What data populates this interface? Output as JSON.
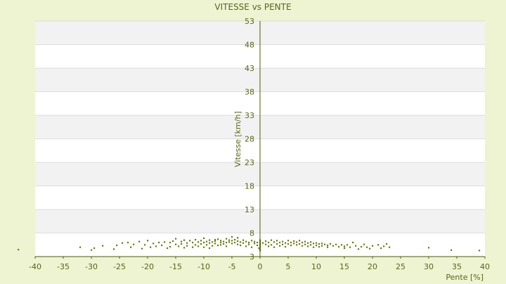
{
  "chart_data": {
    "type": "scatter",
    "title": "VITESSE vs PENTE",
    "xlabel": "Pente [%]",
    "ylabel": "Vitesse [km/h]",
    "xlim": [
      -40,
      40
    ],
    "ylim": [
      3,
      53
    ],
    "x_ticks": [
      -40,
      -35,
      -30,
      -25,
      -20,
      -15,
      -10,
      -5,
      0,
      5,
      10,
      15,
      20,
      25,
      30,
      35,
      40
    ],
    "y_ticks": [
      3,
      8,
      13,
      18,
      23,
      28,
      33,
      38,
      43,
      48,
      53
    ],
    "grid": "horizontal alternating bands",
    "legend": "none",
    "colors": {
      "point": "#6b7a12",
      "axis": "#4f5b0b",
      "text": "#5a6614",
      "band": "#f2f2f2",
      "plot_bg": "#ffffff",
      "page_bg": "#eef3d2"
    },
    "series": [
      {
        "values": [
          [
            -43,
            4.5
          ],
          [
            -32,
            5.0
          ],
          [
            -30,
            4.4
          ],
          [
            -29.5,
            4.8
          ],
          [
            -28,
            5.3
          ],
          [
            -26,
            4.6
          ],
          [
            -25.5,
            5.4
          ],
          [
            -24.5,
            5.9
          ],
          [
            -23.5,
            6.0
          ],
          [
            -23,
            5.0
          ],
          [
            -22.5,
            5.6
          ],
          [
            -21.5,
            6.2
          ],
          [
            -21,
            4.7
          ],
          [
            -20.5,
            5.5
          ],
          [
            -20,
            6.4
          ],
          [
            -19.5,
            5.0
          ],
          [
            -19,
            5.8
          ],
          [
            -18.5,
            5.2
          ],
          [
            -18,
            6.0
          ],
          [
            -17.5,
            5.4
          ],
          [
            -17,
            6.1
          ],
          [
            -16.5,
            4.8
          ],
          [
            -16,
            6.0
          ],
          [
            -16,
            5.1
          ],
          [
            -15.5,
            6.3
          ],
          [
            -15,
            5.6
          ],
          [
            -15,
            6.8
          ],
          [
            -14.5,
            5.2
          ],
          [
            -14,
            6.2
          ],
          [
            -14,
            5.7
          ],
          [
            -13.5,
            4.9
          ],
          [
            -13.5,
            6.5
          ],
          [
            -13,
            5.9
          ],
          [
            -13,
            5.3
          ],
          [
            -12.5,
            6.4
          ],
          [
            -12,
            5.0
          ],
          [
            -12,
            6.0
          ],
          [
            -11.5,
            5.5
          ],
          [
            -11.5,
            6.6
          ],
          [
            -11,
            6.1
          ],
          [
            -11,
            5.2
          ],
          [
            -10.5,
            6.4
          ],
          [
            -10.5,
            5.7
          ],
          [
            -10,
            6.0
          ],
          [
            -10,
            6.9
          ],
          [
            -10,
            5.0
          ],
          [
            -9.5,
            6.2
          ],
          [
            -9.5,
            5.5
          ],
          [
            -9,
            6.5
          ],
          [
            -9,
            5.9
          ],
          [
            -9,
            4.8
          ],
          [
            -8.5,
            6.1
          ],
          [
            -8.5,
            5.3
          ],
          [
            -8,
            6.6
          ],
          [
            -8,
            5.8
          ],
          [
            -8,
            6.3
          ],
          [
            -7.5,
            5.4
          ],
          [
            -7.5,
            6.7
          ],
          [
            -7,
            6.0
          ],
          [
            -7,
            5.5
          ],
          [
            -7,
            6.4
          ],
          [
            -6.5,
            6.2
          ],
          [
            -6.5,
            5.7
          ],
          [
            -6,
            6.8
          ],
          [
            -6,
            6.0
          ],
          [
            -6,
            5.2
          ],
          [
            -5.5,
            6.5
          ],
          [
            -5.5,
            6.1
          ],
          [
            -5,
            7.2
          ],
          [
            -5,
            5.8
          ],
          [
            -5,
            6.4
          ],
          [
            -4.5,
            6.0
          ],
          [
            -4.5,
            6.6
          ],
          [
            -4,
            5.6
          ],
          [
            -4,
            6.3
          ],
          [
            -4,
            7.0
          ],
          [
            -3.5,
            6.1
          ],
          [
            -3.5,
            5.4
          ],
          [
            -3,
            6.5
          ],
          [
            -3,
            5.9
          ],
          [
            -2.5,
            6.2
          ],
          [
            -2.5,
            5.2
          ],
          [
            -2,
            6.0
          ],
          [
            -2,
            5.6
          ],
          [
            -1.5,
            6.4
          ],
          [
            -1.5,
            5.0
          ],
          [
            -1,
            5.8
          ],
          [
            -1,
            6.2
          ],
          [
            -0.5,
            5.4
          ],
          [
            -0.5,
            6.0
          ],
          [
            -0.2,
            4.8
          ],
          [
            0,
            4.3
          ],
          [
            0,
            4.6
          ],
          [
            0,
            5.0
          ],
          [
            0,
            5.3
          ],
          [
            0,
            5.6
          ],
          [
            0,
            5.9
          ],
          [
            0,
            6.2
          ],
          [
            0,
            6.5
          ],
          [
            0.5,
            5.9
          ],
          [
            1,
            5.6
          ],
          [
            1,
            6.3
          ],
          [
            1.5,
            5.2
          ],
          [
            1.5,
            6.0
          ],
          [
            2,
            6.5
          ],
          [
            2,
            5.5
          ],
          [
            2.5,
            6.1
          ],
          [
            2.5,
            5.0
          ],
          [
            3,
            6.4
          ],
          [
            3,
            5.7
          ],
          [
            3.5,
            6.0
          ],
          [
            3.5,
            5.3
          ],
          [
            4,
            6.2
          ],
          [
            4,
            5.6
          ],
          [
            4.5,
            5.9
          ],
          [
            4.5,
            5.1
          ],
          [
            5,
            6.4
          ],
          [
            5,
            5.7
          ],
          [
            5.5,
            6.0
          ],
          [
            5.5,
            5.4
          ],
          [
            6,
            6.3
          ],
          [
            6,
            5.8
          ],
          [
            6.5,
            5.5
          ],
          [
            6.5,
            6.1
          ],
          [
            7,
            6.4
          ],
          [
            7,
            5.7
          ],
          [
            7.5,
            6.0
          ],
          [
            7.5,
            5.3
          ],
          [
            8,
            6.2
          ],
          [
            8,
            5.6
          ],
          [
            8.5,
            5.9
          ],
          [
            8.5,
            5.2
          ],
          [
            9,
            6.1
          ],
          [
            9,
            5.5
          ],
          [
            9.5,
            5.8
          ],
          [
            9.5,
            5.0
          ],
          [
            10,
            5.9
          ],
          [
            10,
            5.4
          ],
          [
            10.5,
            5.7
          ],
          [
            10.5,
            5.1
          ],
          [
            11,
            5.8
          ],
          [
            11,
            5.3
          ],
          [
            11.5,
            5.6
          ],
          [
            12,
            5.4
          ],
          [
            12,
            5.0
          ],
          [
            12.5,
            5.7
          ],
          [
            13,
            5.3
          ],
          [
            13.5,
            5.6
          ],
          [
            14,
            5.1
          ],
          [
            14.5,
            5.5
          ],
          [
            15,
            5.2
          ],
          [
            15,
            4.8
          ],
          [
            15.5,
            5.5
          ],
          [
            16,
            5.0
          ],
          [
            16.5,
            6.0
          ],
          [
            17,
            5.3
          ],
          [
            17.5,
            4.6
          ],
          [
            18,
            5.1
          ],
          [
            18.5,
            5.6
          ],
          [
            19,
            5.0
          ],
          [
            19.5,
            4.7
          ],
          [
            20,
            5.3
          ],
          [
            21,
            5.5
          ],
          [
            21.5,
            4.8
          ],
          [
            22,
            5.2
          ],
          [
            22.5,
            5.7
          ],
          [
            23,
            5.0
          ],
          [
            30,
            4.9
          ],
          [
            34,
            4.4
          ],
          [
            39,
            4.3
          ]
        ]
      }
    ]
  }
}
